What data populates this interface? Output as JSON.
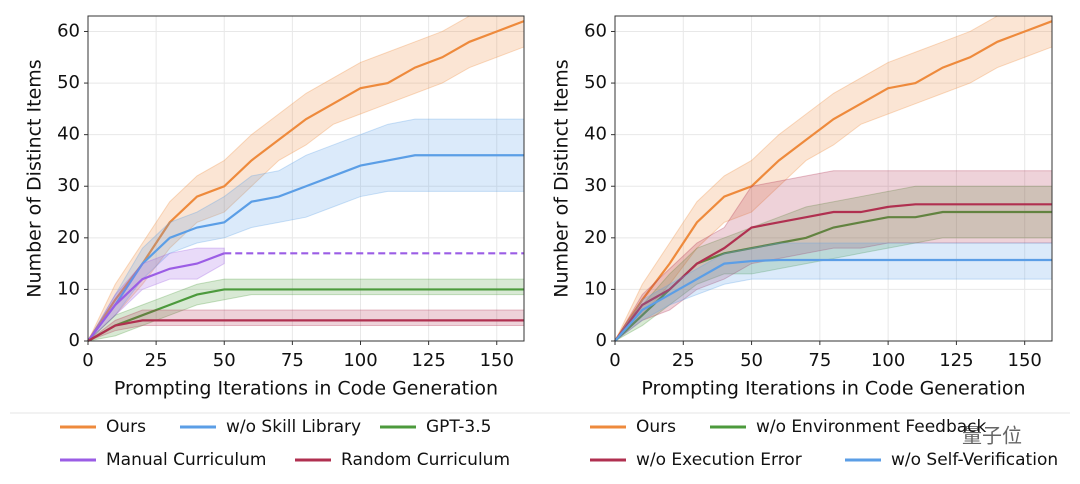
{
  "chart_data": [
    {
      "type": "line",
      "xlabel": "Prompting Iterations in Code Generation",
      "ylabel": "Number of Distinct Items",
      "x": [
        0,
        10,
        20,
        30,
        40,
        50,
        60,
        70,
        80,
        90,
        100,
        110,
        120,
        130,
        140,
        150,
        160
      ],
      "xlim": [
        0,
        160
      ],
      "ylim": [
        0,
        63
      ],
      "xticks": [
        0,
        25,
        50,
        75,
        100,
        125,
        150
      ],
      "yticks": [
        0,
        10,
        20,
        30,
        40,
        50,
        60
      ],
      "grid": true,
      "series": [
        {
          "name": "Ours",
          "color": "#ee8a3c",
          "values": [
            0,
            8,
            15,
            23,
            28,
            30,
            35,
            39,
            43,
            46,
            49,
            50,
            53,
            55,
            58,
            60,
            62
          ],
          "lower": [
            0,
            5,
            11,
            18,
            23,
            25,
            30,
            35,
            38,
            42,
            44,
            46,
            48,
            50,
            53,
            55,
            57
          ],
          "upper": [
            0,
            11,
            19,
            27,
            32,
            35,
            40,
            44,
            48,
            51,
            54,
            56,
            58,
            60,
            63,
            63,
            63
          ]
        },
        {
          "name": "w/o Skill Library",
          "color": "#5b9ee6",
          "values": [
            0,
            7,
            15,
            20,
            22,
            23,
            27,
            28,
            30,
            32,
            34,
            35,
            36,
            36,
            36,
            36,
            36
          ],
          "lower": [
            0,
            5,
            12,
            17,
            19,
            20,
            22,
            23,
            24,
            26,
            28,
            29,
            29,
            29,
            29,
            29,
            29
          ],
          "upper": [
            0,
            9,
            18,
            23,
            25,
            28,
            32,
            33,
            36,
            38,
            40,
            42,
            43,
            43,
            43,
            43,
            43
          ]
        },
        {
          "name": "GPT-3.5",
          "color": "#4c9a3c",
          "values": [
            0,
            3,
            5,
            7,
            9,
            10,
            10,
            10,
            10,
            10,
            10,
            10,
            10,
            10,
            10,
            10,
            10
          ],
          "lower": [
            0,
            1,
            3,
            5,
            7,
            8,
            9,
            9,
            9,
            9,
            9,
            9,
            9,
            9,
            9,
            9,
            9
          ],
          "upper": [
            0,
            5,
            7,
            9,
            11,
            12,
            12,
            12,
            12,
            12,
            12,
            12,
            12,
            12,
            12,
            12,
            12
          ]
        },
        {
          "name": "Manual Curriculum",
          "color": "#9b5de5",
          "values": [
            0,
            7,
            12,
            14,
            15,
            17,
            null,
            null,
            null,
            null,
            null,
            null,
            null,
            null,
            null,
            null,
            null
          ],
          "lower": [
            0,
            5,
            10,
            12,
            12,
            15,
            null,
            null,
            null,
            null,
            null,
            null,
            null,
            null,
            null,
            null,
            null
          ],
          "upper": [
            0,
            9,
            15,
            17,
            18,
            18,
            null,
            null,
            null,
            null,
            null,
            null,
            null,
            null,
            null,
            null,
            null
          ],
          "extrapolated_value": 17
        },
        {
          "name": "Random Curriculum",
          "color": "#b03050",
          "values": [
            0,
            3,
            4,
            4,
            4,
            4,
            4,
            4,
            4,
            4,
            4,
            4,
            4,
            4,
            4,
            4,
            4
          ],
          "lower": [
            0,
            2,
            3,
            3,
            3,
            3,
            3,
            3,
            3,
            3,
            3,
            3,
            3,
            3,
            3,
            3,
            3
          ],
          "upper": [
            0,
            4,
            6,
            6,
            6,
            6,
            6,
            6,
            6,
            6,
            6,
            6,
            6,
            6,
            6,
            6,
            6
          ]
        }
      ]
    },
    {
      "type": "line",
      "xlabel": "Prompting Iterations in Code Generation",
      "ylabel": "Number of Distinct Items",
      "x": [
        0,
        10,
        20,
        30,
        40,
        50,
        60,
        70,
        80,
        90,
        100,
        110,
        120,
        130,
        140,
        150,
        160
      ],
      "xlim": [
        0,
        160
      ],
      "ylim": [
        0,
        63
      ],
      "xticks": [
        0,
        25,
        50,
        75,
        100,
        125,
        150
      ],
      "yticks": [
        0,
        10,
        20,
        30,
        40,
        50,
        60
      ],
      "grid": true,
      "series": [
        {
          "name": "Ours",
          "color": "#ee8a3c",
          "values": [
            0,
            8,
            15,
            23,
            28,
            30,
            35,
            39,
            43,
            46,
            49,
            50,
            53,
            55,
            58,
            60,
            62
          ],
          "lower": [
            0,
            5,
            11,
            18,
            23,
            25,
            30,
            35,
            38,
            42,
            44,
            46,
            48,
            50,
            53,
            55,
            57
          ],
          "upper": [
            0,
            11,
            19,
            27,
            32,
            35,
            40,
            44,
            48,
            51,
            54,
            56,
            58,
            60,
            63,
            63,
            63
          ]
        },
        {
          "name": "w/o Environment Feedback",
          "color": "#4c9a3c",
          "values": [
            0,
            5,
            10,
            15,
            17,
            18,
            19,
            20,
            22,
            23,
            24,
            24,
            25,
            25,
            25,
            25,
            25
          ],
          "lower": [
            0,
            3,
            7,
            11,
            13,
            13,
            14,
            15,
            16,
            17,
            18,
            19,
            20,
            20,
            20,
            20,
            20
          ],
          "upper": [
            0,
            7,
            13,
            18,
            20,
            22,
            24,
            26,
            27,
            28,
            29,
            30,
            30,
            30,
            30,
            30,
            30
          ]
        },
        {
          "name": "w/o Execution Error",
          "color": "#b03050",
          "values": [
            0,
            7,
            10,
            15,
            18,
            22,
            23,
            24,
            25,
            25,
            26,
            26.5,
            26.5,
            26.5,
            26.5,
            26.5,
            26.5
          ],
          "lower": [
            0,
            4,
            6,
            10,
            12,
            15,
            16,
            17,
            18,
            18,
            19,
            19,
            19,
            19,
            19,
            19,
            19
          ],
          "upper": [
            0,
            9,
            14,
            19,
            22,
            30,
            31,
            32,
            33,
            33,
            33,
            33,
            33,
            33,
            33,
            33,
            33
          ]
        },
        {
          "name": "w/o Self-Verification",
          "color": "#5b9ee6",
          "values": [
            0,
            6,
            9,
            12,
            15,
            15.5,
            15.7,
            15.7,
            15.7,
            15.7,
            15.7,
            15.7,
            15.7,
            15.7,
            15.7,
            15.7,
            15.7
          ],
          "lower": [
            0,
            4,
            7,
            9,
            11,
            12,
            12,
            12,
            12,
            12,
            12,
            12,
            12,
            12,
            12,
            12,
            12
          ],
          "upper": [
            0,
            8,
            11,
            14,
            17,
            18,
            19,
            19,
            19,
            19,
            19,
            19,
            19,
            19,
            19,
            19,
            19
          ]
        }
      ]
    }
  ],
  "watermark": "量子位"
}
